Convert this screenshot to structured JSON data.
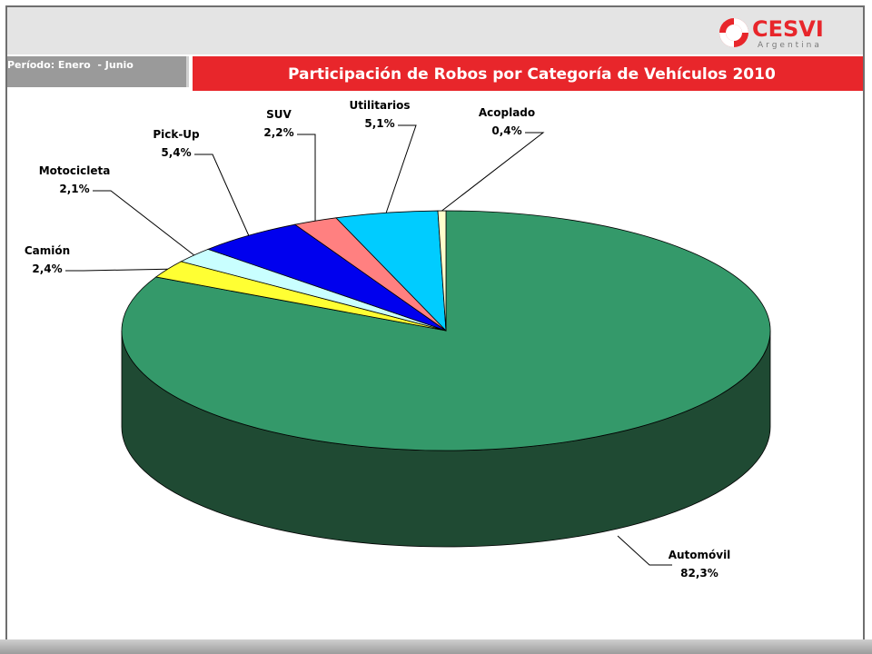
{
  "header": {
    "period": "Período: Enero  - Junio",
    "title": "Participación de Robos por Categoría de Vehículos 2010"
  },
  "logo": {
    "brand": "CESVI",
    "sub": "Argentina",
    "colors": {
      "red": "#e8262b",
      "gray": "#7a7a7a"
    }
  },
  "chart_data": {
    "type": "pie",
    "style": "3d",
    "unit": "%",
    "title": "Participación de Robos por Categoría de Vehículos 2010",
    "slices": [
      {
        "name": "Automóvil",
        "value": 82.3,
        "label": "82,3",
        "color": "#34996a"
      },
      {
        "name": "Camión",
        "value": 2.4,
        "label": "2,4",
        "color": "#ffff33"
      },
      {
        "name": "Motocicleta",
        "value": 2.1,
        "label": "2,1",
        "color": "#c9ffff"
      },
      {
        "name": "Pick-Up",
        "value": 5.4,
        "label": "5,4",
        "color": "#0000ee"
      },
      {
        "name": "SUV",
        "value": 2.2,
        "label": "2,2",
        "color": "#ff8080"
      },
      {
        "name": "Utilitarios",
        "value": 5.1,
        "label": "5,1",
        "color": "#00ccff"
      },
      {
        "name": "Acoplado",
        "value": 0.4,
        "label": "0,4",
        "color": "#ffffcc"
      }
    ],
    "side_color": "#1f4a33"
  }
}
